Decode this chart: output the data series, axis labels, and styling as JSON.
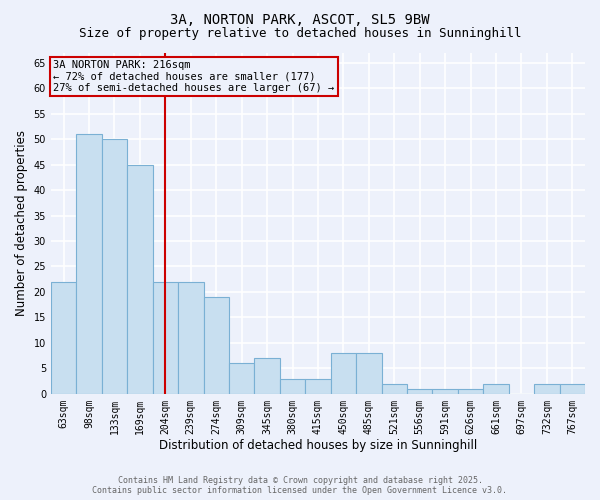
{
  "title_line1": "3A, NORTON PARK, ASCOT, SL5 9BW",
  "title_line2": "Size of property relative to detached houses in Sunninghill",
  "categories": [
    "63sqm",
    "98sqm",
    "133sqm",
    "169sqm",
    "204sqm",
    "239sqm",
    "274sqm",
    "309sqm",
    "345sqm",
    "380sqm",
    "415sqm",
    "450sqm",
    "485sqm",
    "521sqm",
    "556sqm",
    "591sqm",
    "626sqm",
    "661sqm",
    "697sqm",
    "732sqm",
    "767sqm"
  ],
  "values": [
    22,
    51,
    50,
    45,
    22,
    22,
    19,
    6,
    7,
    3,
    3,
    8,
    8,
    2,
    1,
    1,
    1,
    2,
    0,
    2,
    2
  ],
  "bar_color": "#c8dff0",
  "bar_edge_color": "#7ab0d4",
  "ylabel": "Number of detached properties",
  "xlabel": "Distribution of detached houses by size in Sunninghill",
  "ylim": [
    0,
    67
  ],
  "yticks": [
    0,
    5,
    10,
    15,
    20,
    25,
    30,
    35,
    40,
    45,
    50,
    55,
    60,
    65
  ],
  "annotation_box_text": "3A NORTON PARK: 216sqm\n← 72% of detached houses are smaller (177)\n27% of semi-detached houses are larger (67) →",
  "annotation_box_color": "#cc0000",
  "red_line_x": 4.0,
  "background_color": "#edf1fb",
  "grid_color": "#ffffff",
  "footer_line1": "Contains HM Land Registry data © Crown copyright and database right 2025.",
  "footer_line2": "Contains public sector information licensed under the Open Government Licence v3.0.",
  "title_fontsize": 10,
  "subtitle_fontsize": 9,
  "tick_fontsize": 7,
  "label_fontsize": 8.5,
  "annotation_fontsize": 7.5,
  "footer_fontsize": 6
}
